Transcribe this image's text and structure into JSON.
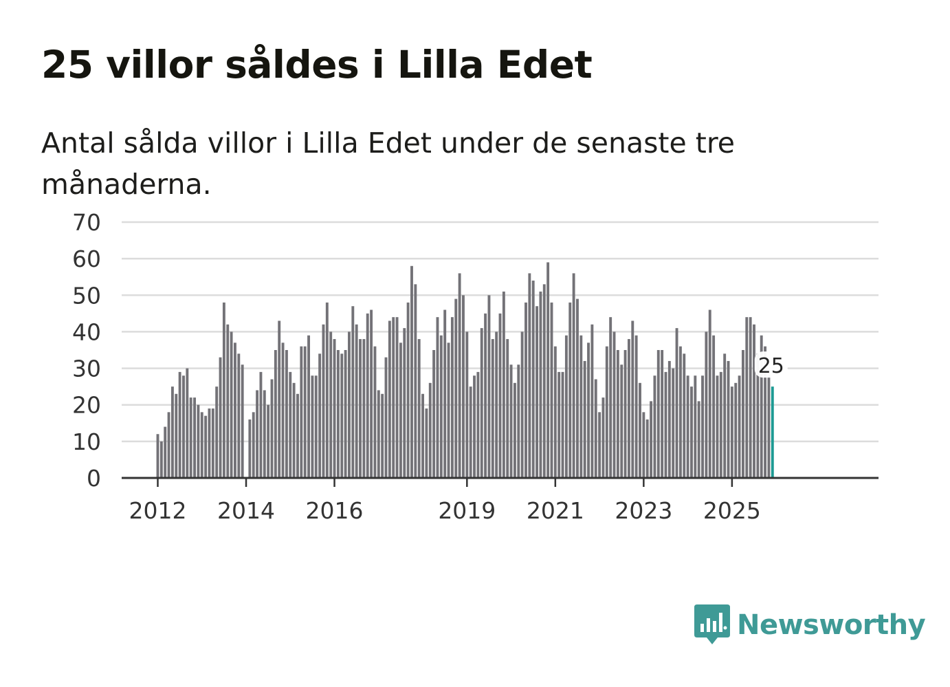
{
  "title": "25 villor såldes i Lilla Edet",
  "subtitle": "Antal sålda villor i Lilla Edet under de senaste tre månaderna.",
  "brand": {
    "name": "Newsworthy",
    "icon": "bar-chart-speech-bubble-icon",
    "color": "#3f9a96"
  },
  "colors": {
    "bar": "#737277",
    "highlight": "#1d9a93",
    "grid": "#dcdcdc",
    "axis": "#333333",
    "text": "#333333"
  },
  "chart_data": {
    "type": "bar",
    "title": "25 villor såldes i Lilla Edet",
    "xlabel": "",
    "ylabel": "",
    "ylim": [
      0,
      70
    ],
    "yticks": [
      0,
      10,
      20,
      30,
      40,
      50,
      60,
      70
    ],
    "xtick_labels": [
      "2012",
      "2014",
      "2016",
      "2019",
      "2021",
      "2023",
      "2025"
    ],
    "x_start": "2012-01",
    "grid": true,
    "highlight_label": "25",
    "series": [
      {
        "name": "Antal sålda villor",
        "values": [
          12,
          10,
          14,
          18,
          25,
          23,
          29,
          28,
          30,
          22,
          22,
          20,
          18,
          17,
          19,
          19,
          25,
          33,
          48,
          42,
          40,
          37,
          34,
          31,
          0,
          16,
          18,
          24,
          29,
          24,
          20,
          27,
          35,
          43,
          37,
          35,
          29,
          26,
          23,
          36,
          36,
          39,
          28,
          28,
          34,
          42,
          48,
          40,
          38,
          35,
          34,
          35,
          40,
          47,
          42,
          38,
          38,
          45,
          46,
          36,
          24,
          23,
          33,
          43,
          44,
          44,
          37,
          41,
          48,
          58,
          53,
          38,
          23,
          19,
          26,
          35,
          44,
          39,
          46,
          37,
          44,
          49,
          56,
          50,
          40,
          25,
          28,
          29,
          41,
          45,
          50,
          38,
          40,
          45,
          51,
          38,
          31,
          26,
          31,
          40,
          48,
          56,
          54,
          47,
          51,
          53,
          59,
          48,
          36,
          29,
          29,
          39,
          48,
          56,
          49,
          39,
          32,
          37,
          42,
          27,
          18,
          22,
          36,
          44,
          40,
          35,
          31,
          35,
          38,
          43,
          39,
          26,
          18,
          16,
          21,
          28,
          35,
          35,
          29,
          32,
          30,
          41,
          36,
          34,
          28,
          25,
          28,
          21,
          28,
          40,
          46,
          39,
          28,
          29,
          34,
          32,
          25,
          26,
          28,
          35,
          44,
          44,
          42,
          34,
          39,
          36,
          28,
          25
        ]
      }
    ]
  }
}
